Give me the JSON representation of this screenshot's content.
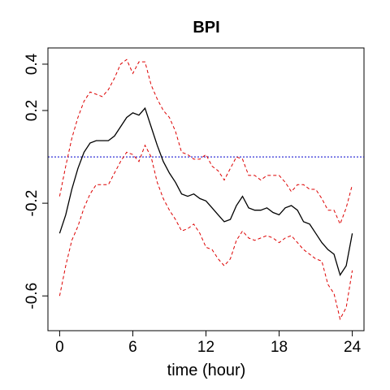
{
  "chart_data": {
    "type": "line",
    "title": "BPI",
    "xlabel": "time (hour)",
    "ylabel": "",
    "xlim": [
      -0.96,
      24.96
    ],
    "ylim": [
      -0.75,
      0.47
    ],
    "x_ticks": [
      0,
      6,
      12,
      18,
      24
    ],
    "x_tick_labels": [
      "0",
      "6",
      "12",
      "18",
      "24"
    ],
    "y_ticks": [
      -0.6,
      -0.2,
      0.2,
      0.4
    ],
    "y_tick_labels": [
      "-0.6",
      "-0.2",
      "0.2",
      "0.4"
    ],
    "reference_line": {
      "y": 0,
      "style": "dotted",
      "color": "#0000cc"
    },
    "grid": false,
    "legend": "none",
    "x": [
      0,
      0.5,
      1,
      1.5,
      2,
      2.5,
      3,
      3.5,
      4,
      4.5,
      5,
      5.5,
      6,
      6.5,
      7,
      7.5,
      8,
      8.5,
      9,
      9.5,
      10,
      10.5,
      11,
      11.5,
      12,
      12.5,
      13,
      13.5,
      14,
      14.5,
      15,
      15.5,
      16,
      16.5,
      17,
      17.5,
      18,
      18.5,
      19,
      19.5,
      20,
      20.5,
      21,
      21.5,
      22,
      22.5,
      23,
      23.5,
      24
    ],
    "series": [
      {
        "color": "#000000",
        "dash": "solid",
        "values": [
          -0.33,
          -0.25,
          -0.14,
          -0.05,
          0.02,
          0.06,
          0.07,
          0.07,
          0.07,
          0.09,
          0.13,
          0.17,
          0.19,
          0.18,
          0.21,
          0.13,
          0.05,
          -0.02,
          -0.07,
          -0.11,
          -0.16,
          -0.17,
          -0.16,
          -0.18,
          -0.19,
          -0.22,
          -0.25,
          -0.28,
          -0.27,
          -0.21,
          -0.17,
          -0.22,
          -0.23,
          -0.23,
          -0.22,
          -0.24,
          -0.25,
          -0.22,
          -0.21,
          -0.23,
          -0.28,
          -0.29,
          -0.33,
          -0.37,
          -0.4,
          -0.42,
          -0.51,
          -0.47,
          -0.33
        ]
      },
      {
        "color": "#dd0000",
        "dash": "dashed",
        "values": [
          -0.17,
          -0.04,
          0.08,
          0.17,
          0.24,
          0.28,
          0.27,
          0.26,
          0.29,
          0.34,
          0.4,
          0.42,
          0.36,
          0.41,
          0.41,
          0.31,
          0.25,
          0.2,
          0.17,
          0.11,
          0.02,
          0.01,
          -0.01,
          -0.01,
          0.01,
          -0.04,
          -0.06,
          -0.1,
          -0.05,
          0.0,
          -0.01,
          -0.08,
          -0.08,
          -0.1,
          -0.08,
          -0.08,
          -0.08,
          -0.11,
          -0.15,
          -0.12,
          -0.12,
          -0.14,
          -0.14,
          -0.18,
          -0.23,
          -0.23,
          -0.29,
          -0.22,
          -0.12
        ]
      },
      {
        "color": "#dd0000",
        "dash": "dashed",
        "values": [
          -0.6,
          -0.47,
          -0.36,
          -0.3,
          -0.22,
          -0.16,
          -0.12,
          -0.12,
          -0.12,
          -0.07,
          -0.02,
          0.02,
          0.01,
          -0.02,
          0.05,
          0.0,
          -0.11,
          -0.18,
          -0.23,
          -0.27,
          -0.32,
          -0.31,
          -0.29,
          -0.33,
          -0.39,
          -0.4,
          -0.44,
          -0.47,
          -0.44,
          -0.36,
          -0.32,
          -0.35,
          -0.36,
          -0.35,
          -0.34,
          -0.35,
          -0.37,
          -0.35,
          -0.34,
          -0.37,
          -0.4,
          -0.42,
          -0.44,
          -0.45,
          -0.55,
          -0.59,
          -0.7,
          -0.65,
          -0.49
        ]
      }
    ]
  }
}
